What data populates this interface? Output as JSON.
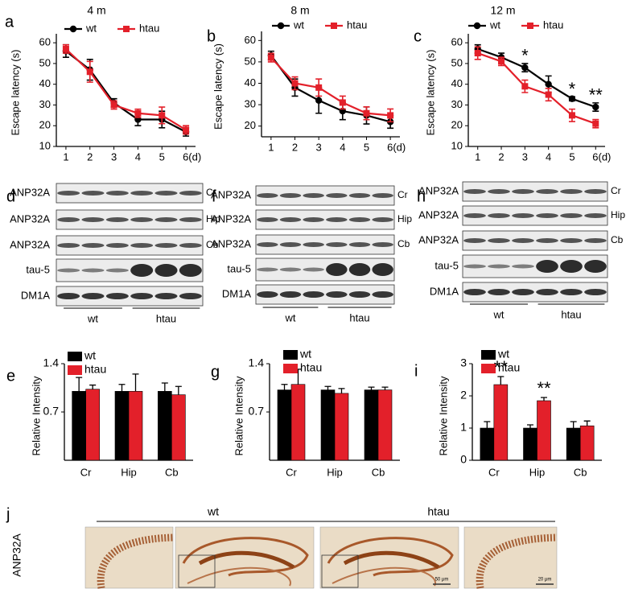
{
  "chart_data": [
    {
      "type": "line",
      "panel": "a",
      "title": "4 m",
      "y_label": "Escape latency (s)",
      "x": [
        1,
        2,
        3,
        4,
        5,
        6
      ],
      "xlim": [
        0.6,
        6.4
      ],
      "xticks": [
        1,
        2,
        3,
        4,
        5,
        {
          "value": 6,
          "label": "6(d)"
        }
      ],
      "ylim": [
        10,
        62
      ],
      "yticks": [
        10,
        20,
        30,
        40,
        50,
        60
      ],
      "series": [
        {
          "name": "wt",
          "color": "#000000",
          "marker": "circle",
          "values": [
            56,
            47,
            31,
            23,
            23,
            17
          ],
          "errors": [
            3,
            5,
            2,
            3,
            4,
            2
          ]
        },
        {
          "name": "htau",
          "color": "#e3202a",
          "marker": "square",
          "values": [
            57,
            46,
            30,
            26,
            25,
            18
          ],
          "errors": [
            2,
            5,
            2,
            2,
            4,
            2
          ]
        }
      ]
    },
    {
      "type": "line",
      "panel": "b",
      "title": "8 m",
      "y_label": "Escape latency (s)",
      "x": [
        1,
        2,
        3,
        4,
        5,
        6
      ],
      "xlim": [
        0.6,
        6.4
      ],
      "xticks": [
        1,
        2,
        3,
        4,
        5,
        {
          "value": 6,
          "label": "6(d)"
        }
      ],
      "ylim": [
        15,
        62
      ],
      "yticks": [
        20,
        30,
        40,
        50,
        60
      ],
      "series": [
        {
          "name": "wt",
          "color": "#000000",
          "marker": "circle",
          "values": [
            53,
            38,
            32,
            27,
            25,
            22
          ],
          "errors": [
            2,
            4,
            6,
            4,
            4,
            3
          ]
        },
        {
          "name": "htau",
          "color": "#e3202a",
          "marker": "square",
          "values": [
            52,
            40,
            38,
            31,
            26,
            25
          ],
          "errors": [
            2,
            3,
            4,
            3,
            3,
            3
          ]
        }
      ]
    },
    {
      "type": "line",
      "panel": "c",
      "title": "12 m",
      "y_label": "Escape latency (s)",
      "x": [
        1,
        2,
        3,
        4,
        5,
        6
      ],
      "xlim": [
        0.6,
        6.4
      ],
      "xticks": [
        1,
        2,
        3,
        4,
        5,
        {
          "value": 6,
          "label": "6(d)"
        }
      ],
      "ylim": [
        10,
        62
      ],
      "yticks": [
        10,
        20,
        30,
        40,
        50,
        60
      ],
      "series": [
        {
          "name": "wt",
          "color": "#000000",
          "marker": "circle",
          "values": [
            57,
            53,
            48,
            40,
            33,
            29
          ],
          "errors": [
            2,
            2,
            2,
            4,
            1,
            2
          ]
        },
        {
          "name": "htau",
          "color": "#e3202a",
          "marker": "square",
          "values": [
            55,
            51,
            39,
            35,
            25,
            21
          ],
          "errors": [
            3,
            2,
            3,
            3,
            3,
            2
          ]
        }
      ],
      "annotations": [
        {
          "text": "*",
          "x": 3
        },
        {
          "text": "*",
          "x": 5
        },
        {
          "text": "**",
          "x": 6
        }
      ]
    },
    {
      "type": "bar",
      "panel": "e",
      "y_label": "Relative Intensity",
      "categories": [
        "Cr",
        "Hip",
        "Cb"
      ],
      "ylim": [
        0,
        1.4
      ],
      "yticks": [
        0.7,
        1.4
      ],
      "series": [
        {
          "name": "wt",
          "color": "#000000",
          "values": [
            1.0,
            1.0,
            1.0
          ],
          "errors": [
            0.2,
            0.1,
            0.12
          ]
        },
        {
          "name": "htau",
          "color": "#e3202a",
          "values": [
            1.03,
            1.0,
            0.95
          ],
          "errors": [
            0.06,
            0.25,
            0.12
          ]
        }
      ]
    },
    {
      "type": "bar",
      "panel": "g",
      "y_label": "Relative Intensity",
      "categories": [
        "Cr",
        "Hip",
        "Cb"
      ],
      "ylim": [
        0,
        1.4
      ],
      "yticks": [
        0.7,
        1.4
      ],
      "series": [
        {
          "name": "wt",
          "color": "#000000",
          "values": [
            1.02,
            1.02,
            1.02
          ],
          "errors": [
            0.08,
            0.05,
            0.04
          ]
        },
        {
          "name": "htau",
          "color": "#e3202a",
          "values": [
            1.1,
            0.97,
            1.02
          ],
          "errors": [
            0.22,
            0.07,
            0.04
          ]
        }
      ]
    },
    {
      "type": "bar",
      "panel": "i",
      "y_label": "Relative Intensity",
      "categories": [
        "Cr",
        "Hip",
        "Cb"
      ],
      "ylim": [
        0,
        3
      ],
      "yticks": [
        0,
        1,
        2,
        3
      ],
      "series": [
        {
          "name": "wt",
          "color": "#000000",
          "values": [
            1.0,
            1.0,
            1.0
          ],
          "errors": [
            0.2,
            0.1,
            0.2
          ]
        },
        {
          "name": "htau",
          "color": "#e3202a",
          "values": [
            2.35,
            1.85,
            1.07
          ],
          "errors": [
            0.25,
            0.1,
            0.15
          ]
        }
      ],
      "annotations": [
        {
          "text": "**",
          "category": "Cr"
        },
        {
          "text": "**",
          "category": "Hip"
        }
      ]
    }
  ],
  "blots": [
    {
      "panel": "d",
      "rows": [
        {
          "label": "ANP32A",
          "region": "Cr"
        },
        {
          "label": "ANP32A",
          "region": "Hip"
        },
        {
          "label": "ANP32A",
          "region": "Cb"
        },
        {
          "label": "tau-5"
        },
        {
          "label": "DM1A"
        }
      ],
      "groups": [
        "wt",
        "htau"
      ]
    },
    {
      "panel": "f",
      "rows": [
        {
          "label": "ANP32A",
          "region": "Cr"
        },
        {
          "label": "ANP32A",
          "region": "Hip"
        },
        {
          "label": "ANP32A",
          "region": "Cb"
        },
        {
          "label": "tau-5"
        },
        {
          "label": "DM1A"
        }
      ],
      "groups": [
        "wt",
        "htau"
      ]
    },
    {
      "panel": "h",
      "rows": [
        {
          "label": "ANP32A",
          "region": "Cr"
        },
        {
          "label": "ANP32A",
          "region": "Hip"
        },
        {
          "label": "ANP32A",
          "region": "Cb"
        },
        {
          "label": "tau-5"
        },
        {
          "label": "DM1A"
        }
      ],
      "groups": [
        "wt",
        "htau"
      ]
    }
  ],
  "histology": {
    "panel": "j",
    "y_label": "ANP32A",
    "groups": [
      "wt",
      "htau"
    ],
    "scale_bars": [
      "50 μm",
      "20 μm"
    ]
  }
}
